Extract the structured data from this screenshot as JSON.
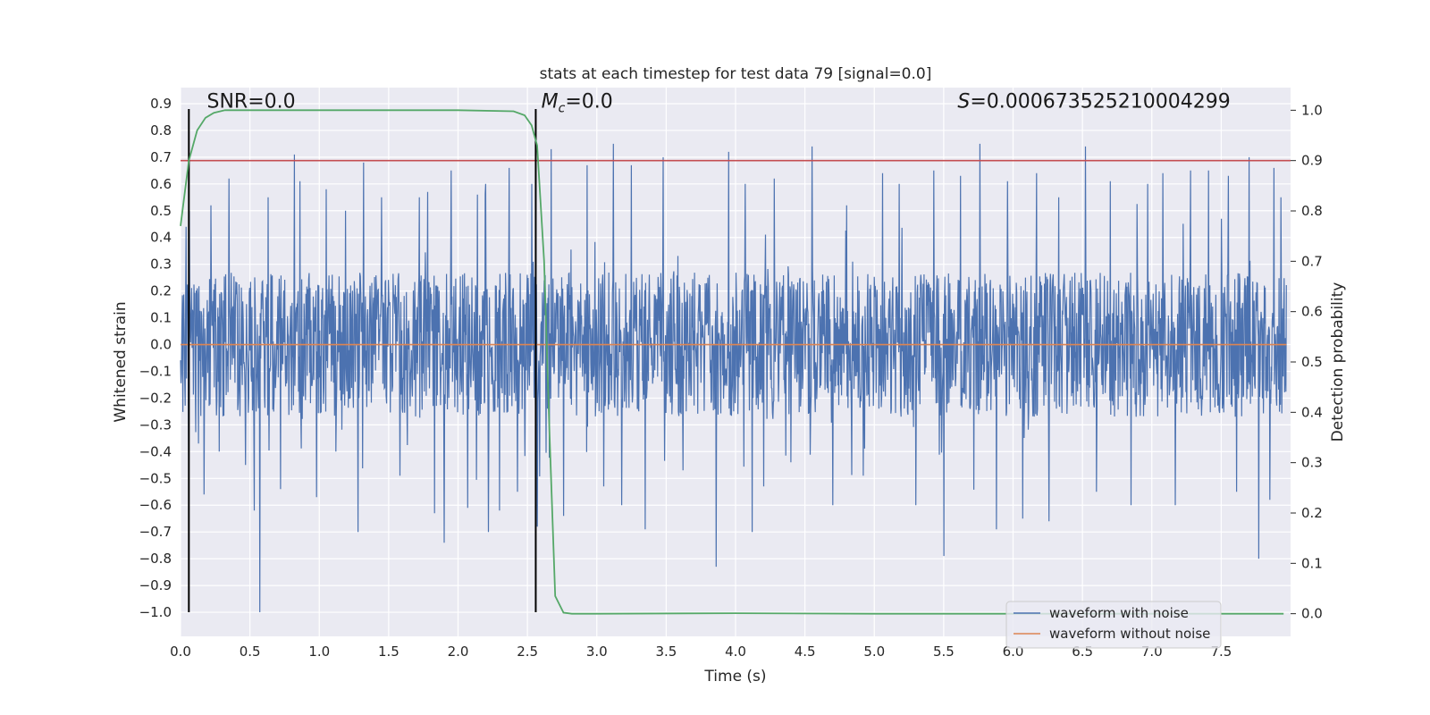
{
  "chart_data": {
    "type": "line",
    "title": "stats at each timestep for test data 79 [signal=0.0]",
    "xlabel": "Time (s)",
    "ylabel": "Whitened strain",
    "y2label": "Detection probability",
    "xlim": [
      0.0,
      8.0
    ],
    "ylim": [
      -1.09,
      0.96
    ],
    "y2lim": [
      -0.045,
      1.045
    ],
    "x_ticks": [
      0.0,
      0.5,
      1.0,
      1.5,
      2.0,
      2.5,
      3.0,
      3.5,
      4.0,
      4.5,
      5.0,
      5.5,
      6.0,
      6.5,
      7.0,
      7.5
    ],
    "x_tick_labels": [
      "0.0",
      "0.5",
      "1.0",
      "1.5",
      "2.0",
      "2.5",
      "3.0",
      "3.5",
      "4.0",
      "4.5",
      "5.0",
      "5.5",
      "6.0",
      "6.5",
      "7.0",
      "7.5"
    ],
    "y_ticks": [
      0.9,
      0.8,
      0.7,
      0.6,
      0.5,
      0.4,
      0.3,
      0.2,
      0.1,
      0.0,
      -0.1,
      -0.2,
      -0.3,
      -0.4,
      -0.5,
      -0.6,
      -0.7,
      -0.8,
      -0.9,
      -1.0
    ],
    "y_tick_labels": [
      "0.9",
      "0.8",
      "0.7",
      "0.6",
      "0.5",
      "0.4",
      "0.3",
      "0.2",
      "0.1",
      "0.0",
      "−0.1",
      "−0.2",
      "−0.3",
      "−0.4",
      "−0.5",
      "−0.6",
      "−0.7",
      "−0.8",
      "−0.9",
      "−1.0"
    ],
    "y2_ticks": [
      1.0,
      0.9,
      0.8,
      0.7,
      0.6,
      0.5,
      0.4,
      0.3,
      0.2,
      0.1,
      0.0
    ],
    "y2_tick_labels": [
      "1.0",
      "0.9",
      "0.8",
      "0.7",
      "0.6",
      "0.5",
      "0.4",
      "0.3",
      "0.2",
      "0.1",
      "0.0"
    ],
    "series": [
      {
        "name": "waveform with noise",
        "axis": "left",
        "color": "#4c72b0",
        "style": "noise",
        "duration": 7.97,
        "envelope": 0.27,
        "spike_peaks": [
          [
            0.04,
            0.44
          ],
          [
            0.06,
            -0.57
          ],
          [
            0.17,
            -0.56
          ],
          [
            0.22,
            0.52
          ],
          [
            0.28,
            -0.4
          ],
          [
            0.35,
            0.62
          ],
          [
            0.47,
            -0.45
          ],
          [
            0.53,
            -0.62
          ],
          [
            0.57,
            -1.0
          ],
          [
            0.63,
            0.55
          ],
          [
            0.72,
            -0.54
          ],
          [
            0.82,
            0.71
          ],
          [
            0.86,
            0.61
          ],
          [
            0.98,
            -0.57
          ],
          [
            1.05,
            0.58
          ],
          [
            1.12,
            -0.4
          ],
          [
            1.19,
            0.5
          ],
          [
            1.28,
            -0.7
          ],
          [
            1.32,
            0.68
          ],
          [
            1.45,
            0.55
          ],
          [
            1.58,
            -0.49
          ],
          [
            1.72,
            0.55
          ],
          [
            1.78,
            0.57
          ],
          [
            1.83,
            -0.63
          ],
          [
            1.9,
            -0.74
          ],
          [
            1.95,
            0.65
          ],
          [
            2.07,
            -0.61
          ],
          [
            2.14,
            0.56
          ],
          [
            2.2,
            0.6
          ],
          [
            2.22,
            -0.7
          ],
          [
            2.3,
            -0.62
          ],
          [
            2.37,
            0.66
          ],
          [
            2.43,
            -0.55
          ],
          [
            2.53,
            0.6
          ],
          [
            2.57,
            -0.68
          ],
          [
            2.67,
            0.73
          ],
          [
            2.76,
            -0.64
          ],
          [
            2.93,
            0.67
          ],
          [
            3.05,
            -0.53
          ],
          [
            3.12,
            0.75
          ],
          [
            3.18,
            -0.6
          ],
          [
            3.25,
            0.67
          ],
          [
            3.35,
            -0.69
          ],
          [
            3.48,
            0.7
          ],
          [
            3.62,
            -0.47
          ],
          [
            3.86,
            -0.83
          ],
          [
            3.95,
            0.72
          ],
          [
            4.07,
            0.6
          ],
          [
            4.12,
            -0.7
          ],
          [
            4.28,
            0.62
          ],
          [
            4.4,
            -0.44
          ],
          [
            4.55,
            0.74
          ],
          [
            4.7,
            -0.6
          ],
          [
            4.8,
            0.52
          ],
          [
            4.92,
            -0.49
          ],
          [
            5.06,
            0.64
          ],
          [
            5.18,
            0.6
          ],
          [
            5.3,
            -0.6
          ],
          [
            5.43,
            0.65
          ],
          [
            5.5,
            -0.79
          ],
          [
            5.62,
            0.63
          ],
          [
            5.76,
            0.75
          ],
          [
            5.88,
            -0.69
          ],
          [
            5.96,
            0.61
          ],
          [
            6.07,
            -0.65
          ],
          [
            6.17,
            0.64
          ],
          [
            6.26,
            -0.66
          ],
          [
            6.33,
            0.55
          ],
          [
            6.52,
            0.74
          ],
          [
            6.6,
            -0.55
          ],
          [
            6.7,
            0.61
          ],
          [
            6.85,
            -0.6
          ],
          [
            6.97,
            0.6
          ],
          [
            7.08,
            0.64
          ],
          [
            7.17,
            -0.6
          ],
          [
            7.28,
            0.65
          ],
          [
            7.41,
            0.65
          ],
          [
            7.55,
            0.63
          ],
          [
            7.61,
            -0.55
          ],
          [
            7.7,
            0.7
          ],
          [
            7.77,
            -0.8
          ],
          [
            7.85,
            -0.58
          ],
          [
            7.88,
            0.66
          ],
          [
            7.93,
            0.55
          ]
        ]
      },
      {
        "name": "waveform without noise",
        "axis": "left",
        "color": "#dd8452",
        "x": [
          0.0,
          7.97
        ],
        "y": [
          0.0,
          0.0
        ]
      },
      {
        "name": "detection probability",
        "axis": "right",
        "color": "#55a868",
        "x": [
          0.0,
          0.06,
          0.12,
          0.18,
          0.24,
          0.32,
          0.5,
          1.0,
          2.0,
          2.4,
          2.48,
          2.53,
          2.57,
          2.62,
          2.66,
          2.7,
          2.76,
          2.82,
          3.0,
          4.0,
          5.0,
          6.0,
          7.0,
          7.95
        ],
        "y": [
          0.77,
          0.9,
          0.96,
          0.985,
          0.995,
          1.0,
          1.0,
          1.0,
          1.0,
          0.998,
          0.99,
          0.97,
          0.93,
          0.7,
          0.35,
          0.035,
          0.002,
          0.0,
          0.0,
          0.001,
          0.0,
          0.0,
          0.0,
          0.0
        ]
      }
    ],
    "reference_lines": [
      {
        "name": "threshold",
        "axis": "right",
        "orientation": "horizontal",
        "value": 0.9,
        "color": "#c44e52"
      },
      {
        "name": "marker-start",
        "axis": "left",
        "orientation": "vertical",
        "value": 0.06,
        "from": -1.0,
        "to": 0.88,
        "color": "#000000"
      },
      {
        "name": "marker-end",
        "axis": "left",
        "orientation": "vertical",
        "value": 2.56,
        "from": -1.0,
        "to": 0.88,
        "color": "#000000"
      }
    ],
    "annotations": [
      {
        "name": "snr",
        "label": "SNR=0.0",
        "x": 0.19,
        "y": 0.885
      },
      {
        "name": "mc",
        "label": "=0.0",
        "symbol": "M",
        "subscript": "c",
        "x": 2.6,
        "y": 0.885
      },
      {
        "name": "s-stat",
        "label": "=0.000673525210004299",
        "symbol": "S",
        "x": 5.6,
        "y": 0.885
      }
    ],
    "legend": {
      "placement": "lower-right",
      "entries": [
        {
          "label": "waveform with noise",
          "color": "#4c72b0"
        },
        {
          "label": "waveform without noise",
          "color": "#dd8452"
        }
      ]
    },
    "style": {
      "plot_background": "#eaeaf2",
      "grid": true,
      "grid_color": "#ffffff"
    }
  }
}
